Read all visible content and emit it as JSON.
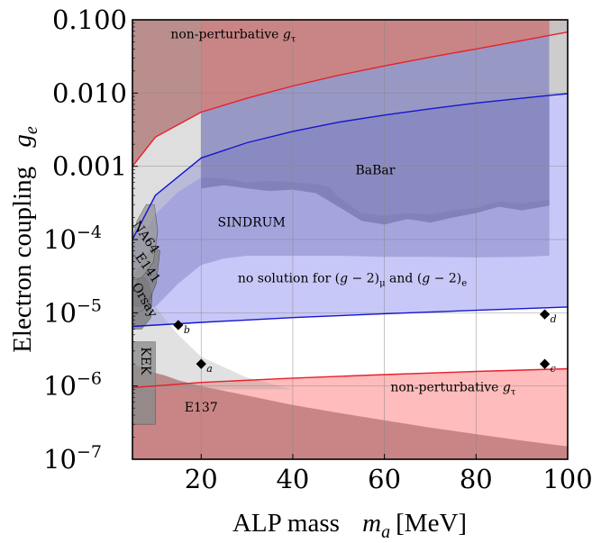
{
  "chart_data": {
    "type": "area",
    "x_axis": {
      "label_text": "ALP mass",
      "label_symbol": "m",
      "label_subscript": "a",
      "label_unit": "[MeV]",
      "range": [
        5,
        100
      ],
      "ticks": [
        20,
        40,
        60,
        80,
        100
      ],
      "tick_labels": [
        "20",
        "40",
        "60",
        "80",
        "100"
      ]
    },
    "y_axis": {
      "label_text": "Electron coupling",
      "label_symbol": "g",
      "label_subscript": "e",
      "scale": "log",
      "range": [
        1e-07,
        0.1
      ],
      "ticks": [
        {
          "value": 0.1,
          "label": "0.100"
        },
        {
          "value": 0.01,
          "label": "0.010"
        },
        {
          "value": 0.001,
          "label": "0.001"
        },
        {
          "value": 0.0001,
          "base": "10",
          "exp": "−4"
        },
        {
          "value": 1e-05,
          "base": "10",
          "exp": "−5"
        },
        {
          "value": 1e-06,
          "base": "10",
          "exp": "−6"
        },
        {
          "value": 1e-07,
          "base": "10",
          "exp": "−7"
        }
      ]
    },
    "grid": true,
    "regions": [
      {
        "label": "non-perturbative g_τ",
        "label_parts": [
          "non-perturbative ",
          "g",
          "τ"
        ],
        "label_color": "#8b1a1a",
        "fill": "#c98585",
        "kind": "upper",
        "boundary_line": "#e8202a",
        "boundary": [
          [
            5,
            0.001
          ],
          [
            10,
            0.0025
          ],
          [
            20,
            0.0055
          ],
          [
            30,
            0.0085
          ],
          [
            40,
            0.0125
          ],
          [
            50,
            0.0175
          ],
          [
            60,
            0.0235
          ],
          [
            70,
            0.031
          ],
          [
            80,
            0.04
          ],
          [
            90,
            0.052
          ],
          [
            100,
            0.068
          ]
        ],
        "label_at": [
          27,
          0.056
        ]
      },
      {
        "label": "non-perturbative g_τ",
        "label_parts": [
          "non-perturbative ",
          "g",
          "τ"
        ],
        "label_color": "#8b1a1a",
        "fill": "#ffbcbc",
        "kind": "lower",
        "boundary_line": "#e8202a",
        "boundary": [
          [
            5,
            9.5e-07
          ],
          [
            20,
            1.12e-06
          ],
          [
            40,
            1.28e-06
          ],
          [
            60,
            1.43e-06
          ],
          [
            80,
            1.58e-06
          ],
          [
            100,
            1.72e-06
          ]
        ],
        "label_at": [
          75,
          8.5e-07
        ]
      },
      {
        "label": "E137",
        "fill": "#c98585",
        "kind": "lower",
        "boundary": [
          [
            5,
            2e-06
          ],
          [
            8,
            1.7e-06
          ],
          [
            10,
            1.5e-06
          ],
          [
            12,
            1.4e-06
          ],
          [
            15,
            1.2e-06
          ],
          [
            20,
            1e-06
          ],
          [
            30,
            7.4e-07
          ],
          [
            40,
            5.5e-07
          ],
          [
            50,
            4.3e-07
          ],
          [
            60,
            3.4e-07
          ],
          [
            70,
            2.7e-07
          ],
          [
            80,
            2.2e-07
          ],
          [
            90,
            1.8e-07
          ],
          [
            100,
            1.5e-07
          ]
        ],
        "label_at": [
          20,
          4.5e-07
        ]
      },
      {
        "label": "no solution for (g − 2)μ and (g − 2)e",
        "label_parts": [
          "no solution for (",
          "g",
          " − 2)",
          "μ",
          " and (",
          "g",
          " − 2)",
          "e"
        ],
        "label_color": "#1a1aa8",
        "fill": "#c8c8f8",
        "kind": "band",
        "boundary_line": "#1515d0",
        "upper": [
          [
            5,
            0.0001
          ],
          [
            10,
            0.0004
          ],
          [
            20,
            0.0013
          ],
          [
            30,
            0.0021
          ],
          [
            40,
            0.003
          ],
          [
            50,
            0.004
          ],
          [
            60,
            0.005
          ],
          [
            70,
            0.0061
          ],
          [
            80,
            0.0073
          ],
          [
            90,
            0.0085
          ],
          [
            96,
            0.0093
          ],
          [
            100,
            0.0098
          ]
        ],
        "lower": [
          [
            5,
            6.5e-06
          ],
          [
            20,
            7.4e-06
          ],
          [
            40,
            8.6e-06
          ],
          [
            60,
            9.7e-06
          ],
          [
            80,
            1.08e-05
          ],
          [
            100,
            1.2e-05
          ]
        ],
        "label_at": [
          53,
          2.6e-05
        ]
      },
      {
        "label": "SINDRUM",
        "fill": "#9a9ad6",
        "kind": "excluded",
        "upper": [
          [
            5,
            9.5e-05
          ],
          [
            8,
            0.00014
          ],
          [
            10,
            0.00022
          ],
          [
            15,
            0.00045
          ],
          [
            20,
            0.0007
          ],
          [
            25,
            0.00068
          ],
          [
            30,
            0.0006
          ],
          [
            35,
            0.00063
          ],
          [
            40,
            0.00061
          ],
          [
            45,
            0.00057
          ],
          [
            48,
            0.00052
          ],
          [
            50,
            0.00038
          ],
          [
            55,
            0.00023
          ],
          [
            60,
            0.00021
          ],
          [
            65,
            0.00023
          ],
          [
            70,
            0.00022
          ],
          [
            75,
            0.00025
          ],
          [
            80,
            0.00027
          ],
          [
            85,
            0.00033
          ],
          [
            90,
            0.00031
          ],
          [
            96,
            0.00035
          ]
        ],
        "lower": [
          [
            5,
            1.2e-05
          ],
          [
            10,
            1.2e-05
          ],
          [
            15,
            2.5e-05
          ],
          [
            20,
            4.5e-05
          ],
          [
            25,
            5.5e-05
          ],
          [
            30,
            6e-05
          ],
          [
            40,
            6e-05
          ],
          [
            50,
            6e-05
          ],
          [
            60,
            5.8e-05
          ],
          [
            70,
            5.8e-05
          ],
          [
            80,
            5.7e-05
          ],
          [
            90,
            5.8e-05
          ],
          [
            96,
            6e-05
          ]
        ],
        "label_at": [
          31,
          0.00015
        ]
      },
      {
        "label": "BaBar",
        "fill": "#7575b0",
        "kind": "excluded",
        "upper": [
          [
            20,
            0.1
          ],
          [
            96,
            0.1
          ]
        ],
        "lower": [
          [
            20,
            0.0005
          ],
          [
            25,
            0.00055
          ],
          [
            30,
            0.0005
          ],
          [
            35,
            0.00046
          ],
          [
            40,
            0.00048
          ],
          [
            45,
            0.00043
          ],
          [
            50,
            0.00028
          ],
          [
            55,
            0.00018
          ],
          [
            60,
            0.00016
          ],
          [
            65,
            0.00019
          ],
          [
            70,
            0.00017
          ],
          [
            75,
            0.0002
          ],
          [
            80,
            0.00023
          ],
          [
            85,
            0.00028
          ],
          [
            90,
            0.00025
          ],
          [
            96,
            0.00029
          ]
        ],
        "label_at": [
          58,
          0.00078
        ]
      },
      {
        "label": "NA64",
        "fill": "#9a9a9a",
        "kind": "beam-dump",
        "label_at": [
          7.2,
          0.0001
        ],
        "rotate": 55
      },
      {
        "label": "E141",
        "fill": "#808080",
        "kind": "beam-dump",
        "label_at": [
          7.6,
          3.8e-05
        ],
        "rotate": 55
      },
      {
        "label": "Orsay",
        "fill": "#707070",
        "kind": "beam-dump",
        "label_at": [
          6.9,
          1.4e-05
        ],
        "rotate": 60
      },
      {
        "label": "KEK",
        "fill": "#8a8a8a",
        "kind": "beam-dump",
        "label_at": [
          7,
          2.2e-06
        ],
        "rotate": 90
      }
    ],
    "points": [
      {
        "label": "a",
        "x": 20,
        "y": 2e-06
      },
      {
        "label": "b",
        "x": 15,
        "y": 6.8e-06
      },
      {
        "label": "c",
        "x": 95,
        "y": 2e-06
      },
      {
        "label": "d",
        "x": 95,
        "y": 9.5e-06
      }
    ]
  }
}
